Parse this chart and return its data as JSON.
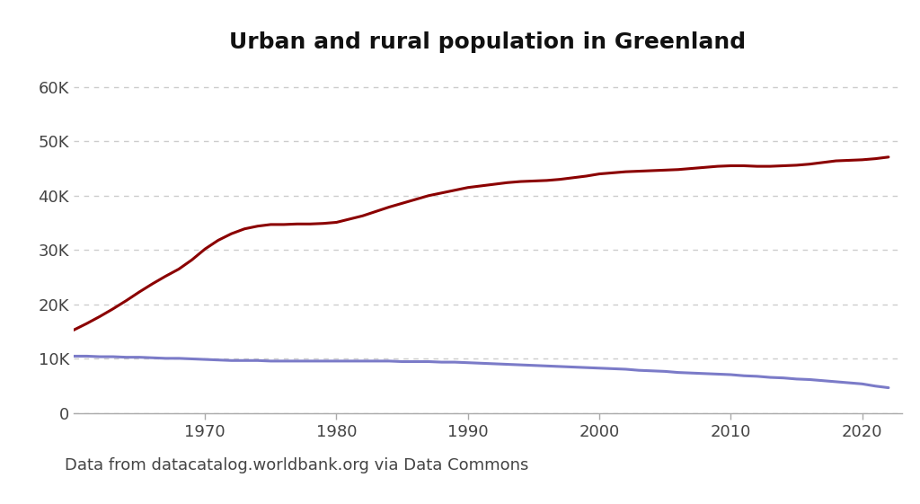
{
  "title": "Urban and rural population in Greenland",
  "title_fontsize": 18,
  "footnote": "Data from datacatalog.worldbank.org via Data Commons",
  "footnote_fontsize": 13,
  "background_color": "#ffffff",
  "urban_color": "#8b0000",
  "rural_color": "#7b7bc8",
  "urban_linewidth": 2.2,
  "rural_linewidth": 2.2,
  "years": [
    1960,
    1961,
    1962,
    1963,
    1964,
    1965,
    1966,
    1967,
    1968,
    1969,
    1970,
    1971,
    1972,
    1973,
    1974,
    1975,
    1976,
    1977,
    1978,
    1979,
    1980,
    1981,
    1982,
    1983,
    1984,
    1985,
    1986,
    1987,
    1988,
    1989,
    1990,
    1991,
    1992,
    1993,
    1994,
    1995,
    1996,
    1997,
    1998,
    1999,
    2000,
    2001,
    2002,
    2003,
    2004,
    2005,
    2006,
    2007,
    2008,
    2009,
    2010,
    2011,
    2012,
    2013,
    2014,
    2015,
    2016,
    2017,
    2018,
    2019,
    2020,
    2021,
    2022
  ],
  "urban": [
    15300,
    16500,
    17800,
    19200,
    20700,
    22300,
    23800,
    25200,
    26500,
    28200,
    30200,
    31800,
    33000,
    33900,
    34400,
    34700,
    34700,
    34800,
    34800,
    34900,
    35100,
    35700,
    36300,
    37100,
    37900,
    38600,
    39300,
    40000,
    40500,
    41000,
    41500,
    41800,
    42100,
    42400,
    42600,
    42700,
    42800,
    43000,
    43300,
    43600,
    44000,
    44200,
    44400,
    44500,
    44600,
    44700,
    44800,
    45000,
    45200,
    45400,
    45500,
    45500,
    45400,
    45400,
    45500,
    45600,
    45800,
    46100,
    46400,
    46500,
    46600,
    46800,
    47100
  ],
  "rural": [
    10500,
    10500,
    10400,
    10400,
    10300,
    10300,
    10200,
    10100,
    10100,
    10000,
    9900,
    9800,
    9700,
    9700,
    9700,
    9600,
    9600,
    9600,
    9600,
    9600,
    9600,
    9600,
    9600,
    9600,
    9600,
    9500,
    9500,
    9500,
    9400,
    9400,
    9300,
    9200,
    9100,
    9000,
    8900,
    8800,
    8700,
    8600,
    8500,
    8400,
    8300,
    8200,
    8100,
    7900,
    7800,
    7700,
    7500,
    7400,
    7300,
    7200,
    7100,
    6900,
    6800,
    6600,
    6500,
    6300,
    6200,
    6000,
    5800,
    5600,
    5400,
    5000,
    4700
  ],
  "xlim": [
    1960,
    2023
  ],
  "ylim": [
    0,
    63000
  ],
  "yticks": [
    0,
    10000,
    20000,
    30000,
    40000,
    50000,
    60000
  ],
  "xticks": [
    1970,
    1980,
    1990,
    2000,
    2010,
    2020
  ],
  "grid_color": "#cccccc",
  "grid_linestyle": "dotted",
  "spine_color": "#aaaaaa"
}
